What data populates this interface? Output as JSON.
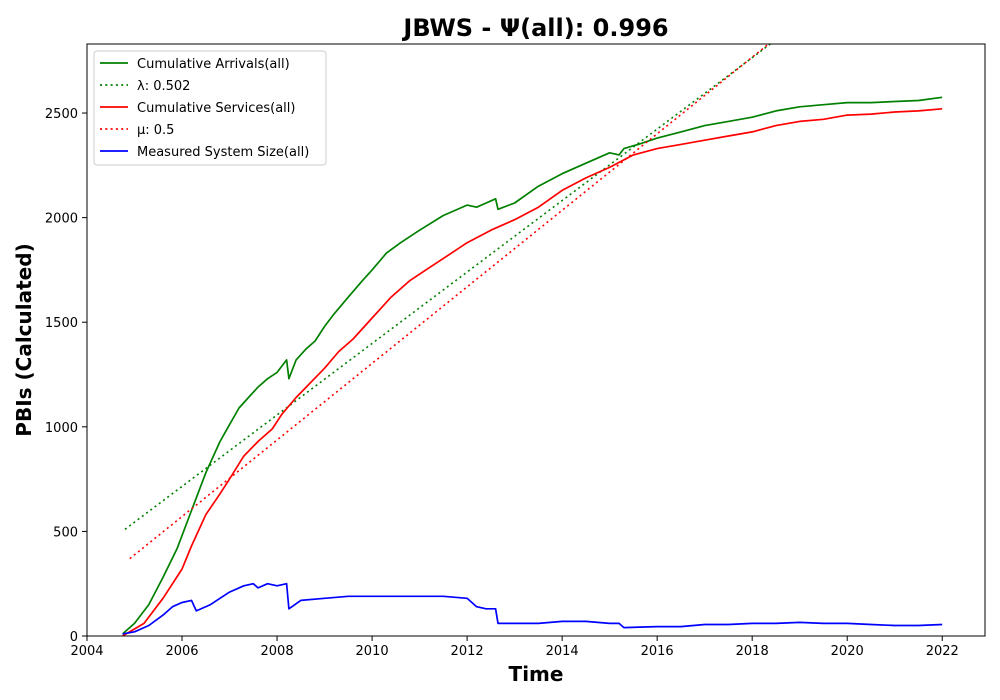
{
  "chart_data": {
    "type": "line",
    "title": "JBWS -  Ψ(all): 0.996",
    "xlabel": "Time",
    "ylabel": "PBIs (Calculated)",
    "xlim": [
      2004.0,
      2022.9
    ],
    "ylim": [
      0,
      2830
    ],
    "x_ticks": [
      2004,
      2006,
      2008,
      2010,
      2012,
      2014,
      2016,
      2018,
      2020,
      2022
    ],
    "x_tick_labels": [
      "2004",
      "2006",
      "2008",
      "2010",
      "2012",
      "2014",
      "2016",
      "2018",
      "2020",
      "2022"
    ],
    "y_ticks": [
      0,
      500,
      1000,
      1500,
      2000,
      2500
    ],
    "y_tick_labels": [
      "0",
      "500",
      "1000",
      "1500",
      "2000",
      "2500"
    ],
    "grid": false,
    "legend_position": "top-left",
    "series": [
      {
        "name": "Cumulative Arrivals(all)",
        "style": "solid",
        "color": "#008000",
        "x": [
          2004.75,
          2005.0,
          2005.3,
          2005.6,
          2005.9,
          2006.2,
          2006.5,
          2006.8,
          2007.0,
          2007.2,
          2007.4,
          2007.6,
          2007.8,
          2008.0,
          2008.2,
          2008.25,
          2008.4,
          2008.6,
          2008.8,
          2009.0,
          2009.2,
          2009.5,
          2009.8,
          2010.0,
          2010.3,
          2010.6,
          2011.0,
          2011.5,
          2012.0,
          2012.2,
          2012.4,
          2012.6,
          2012.65,
          2013.0,
          2013.5,
          2014.0,
          2014.5,
          2015.0,
          2015.2,
          2015.3,
          2015.6,
          2016.0,
          2016.5,
          2017.0,
          2017.5,
          2018.0,
          2018.5,
          2019.0,
          2019.5,
          2020.0,
          2020.5,
          2021.0,
          2021.5,
          2022.0
        ],
        "y": [
          10,
          60,
          150,
          280,
          420,
          600,
          780,
          930,
          1010,
          1090,
          1140,
          1190,
          1230,
          1260,
          1320,
          1230,
          1320,
          1370,
          1410,
          1480,
          1540,
          1620,
          1700,
          1750,
          1830,
          1880,
          1940,
          2010,
          2060,
          2050,
          2070,
          2090,
          2040,
          2070,
          2150,
          2210,
          2260,
          2310,
          2300,
          2330,
          2350,
          2380,
          2410,
          2440,
          2460,
          2480,
          2510,
          2530,
          2540,
          2550,
          2550,
          2555,
          2560,
          2575
        ]
      },
      {
        "name": "λ: 0.502",
        "style": "dotted",
        "color": "#008000",
        "x": [
          2004.8,
          2018.5
        ],
        "y": [
          510,
          2850
        ]
      },
      {
        "name": "Cumulative Services(all)",
        "style": "solid",
        "color": "#ff0000",
        "x": [
          2004.75,
          2005.2,
          2005.6,
          2006.0,
          2006.2,
          2006.5,
          2006.8,
          2007.0,
          2007.3,
          2007.6,
          2007.9,
          2008.1,
          2008.4,
          2008.7,
          2009.0,
          2009.3,
          2009.6,
          2010.0,
          2010.4,
          2010.8,
          2011.2,
          2011.6,
          2012.0,
          2012.5,
          2013.0,
          2013.5,
          2014.0,
          2014.5,
          2015.0,
          2015.5,
          2016.0,
          2016.5,
          2017.0,
          2017.5,
          2018.0,
          2018.5,
          2019.0,
          2019.5,
          2020.0,
          2020.5,
          2021.0,
          2021.5,
          2022.0
        ],
        "y": [
          0,
          60,
          180,
          320,
          430,
          580,
          680,
          750,
          860,
          930,
          990,
          1060,
          1140,
          1210,
          1280,
          1360,
          1420,
          1520,
          1620,
          1700,
          1760,
          1820,
          1880,
          1940,
          1990,
          2050,
          2130,
          2190,
          2240,
          2300,
          2330,
          2350,
          2370,
          2390,
          2410,
          2440,
          2460,
          2470,
          2490,
          2495,
          2505,
          2510,
          2520
        ]
      },
      {
        "name": "μ: 0.5",
        "style": "dotted",
        "color": "#ff0000",
        "x": [
          2004.9,
          2018.4
        ],
        "y": [
          370,
          2840
        ]
      },
      {
        "name": "Measured System Size(all)",
        "style": "solid",
        "color": "#0000ff",
        "x": [
          2004.75,
          2005.0,
          2005.3,
          2005.6,
          2005.8,
          2006.0,
          2006.2,
          2006.3,
          2006.6,
          2006.8,
          2007.0,
          2007.3,
          2007.5,
          2007.6,
          2007.8,
          2008.0,
          2008.2,
          2008.25,
          2008.5,
          2009.0,
          2009.5,
          2010.0,
          2010.5,
          2011.0,
          2011.5,
          2012.0,
          2012.2,
          2012.4,
          2012.6,
          2012.65,
          2013.0,
          2013.5,
          2014.0,
          2014.5,
          2015.0,
          2015.2,
          2015.3,
          2016.0,
          2016.5,
          2017.0,
          2017.5,
          2018.0,
          2018.5,
          2019.0,
          2019.5,
          2020.0,
          2020.5,
          2021.0,
          2021.5,
          2022.0
        ],
        "y": [
          10,
          20,
          50,
          100,
          140,
          160,
          170,
          120,
          150,
          180,
          210,
          240,
          250,
          230,
          250,
          240,
          250,
          130,
          170,
          180,
          190,
          190,
          190,
          190,
          190,
          180,
          140,
          130,
          130,
          60,
          60,
          60,
          70,
          70,
          60,
          60,
          40,
          45,
          45,
          55,
          55,
          60,
          60,
          65,
          60,
          60,
          55,
          50,
          50,
          55
        ]
      }
    ]
  }
}
